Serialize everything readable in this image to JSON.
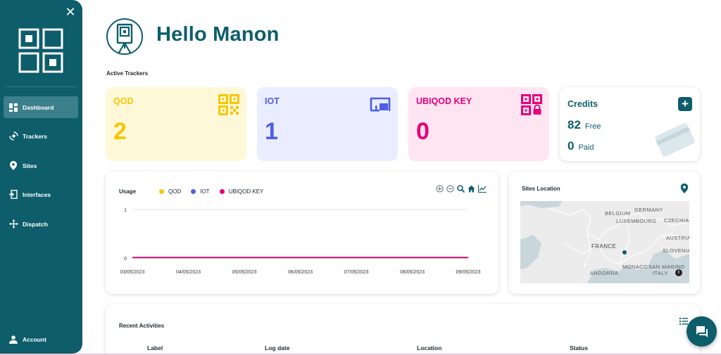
{
  "sidebar": {
    "close_icon": "close-icon",
    "items": [
      {
        "label": "Dashboard",
        "icon": "dashboard-icon",
        "active": true
      },
      {
        "label": "Trackers",
        "icon": "trackers-icon"
      },
      {
        "label": "Sites",
        "icon": "location-pin-icon"
      },
      {
        "label": "Interfaces",
        "icon": "interfaces-icon"
      },
      {
        "label": "Dispatch",
        "icon": "dispatch-icon"
      }
    ],
    "account": {
      "label": "Account",
      "icon": "person-icon"
    }
  },
  "header": {
    "greeting": "Hello Manon"
  },
  "active_trackers": {
    "title": "Active Trackers",
    "cards": [
      {
        "title": "QOD",
        "value": "2",
        "color": "#f6c700",
        "icon": "qr-code-icon"
      },
      {
        "title": "IOT",
        "value": "1",
        "color": "#4f5ee6",
        "icon": "iot-device-icon"
      },
      {
        "title": "UBIQOD KEY",
        "value": "0",
        "color": "#e4007a",
        "icon": "qr-lock-icon"
      }
    ]
  },
  "credits": {
    "title": "Credits",
    "free_value": "82",
    "free_label": "Free",
    "paid_value": "0",
    "paid_label": "Paid"
  },
  "usage": {
    "title": "Usage",
    "legend": [
      {
        "name": "QOD",
        "color": "#f6c700"
      },
      {
        "name": "IOT",
        "color": "#4f5ee6"
      },
      {
        "name": "UBIQOD KEY",
        "color": "#e4007a"
      }
    ]
  },
  "chart_data": {
    "type": "line",
    "x": [
      "03/05/2023",
      "04/05/2023",
      "05/05/2023",
      "06/05/2023",
      "07/05/2023",
      "08/05/2023",
      "09/05/2023"
    ],
    "series": [
      {
        "name": "QOD",
        "values": [
          0,
          0,
          0,
          0,
          0,
          0,
          0
        ],
        "color": "#f6c700"
      },
      {
        "name": "IOT",
        "values": [
          0,
          0,
          0,
          0,
          0,
          0,
          0
        ],
        "color": "#4f5ee6"
      },
      {
        "name": "UBIQOD KEY",
        "values": [
          0,
          0,
          0,
          0,
          0,
          0,
          0
        ],
        "color": "#e4007a"
      }
    ],
    "yticks": [
      "0",
      "1"
    ],
    "ylim": [
      0,
      1
    ],
    "grid": true,
    "legend": "top-left"
  },
  "sites": {
    "title": "Sites Location",
    "map_labels": [
      "BELGIUM",
      "GERMANY",
      "LUXEMBOURG",
      "CZECHIA",
      "FRANCE",
      "AUSTRIA",
      "SLOVENIA",
      "MONACO",
      "SAN MARINO",
      "ITALY",
      "ANDORRA"
    ]
  },
  "recent": {
    "title": "Recent Activities",
    "columns": [
      "Label",
      "Log date",
      "Location",
      "Status"
    ]
  }
}
